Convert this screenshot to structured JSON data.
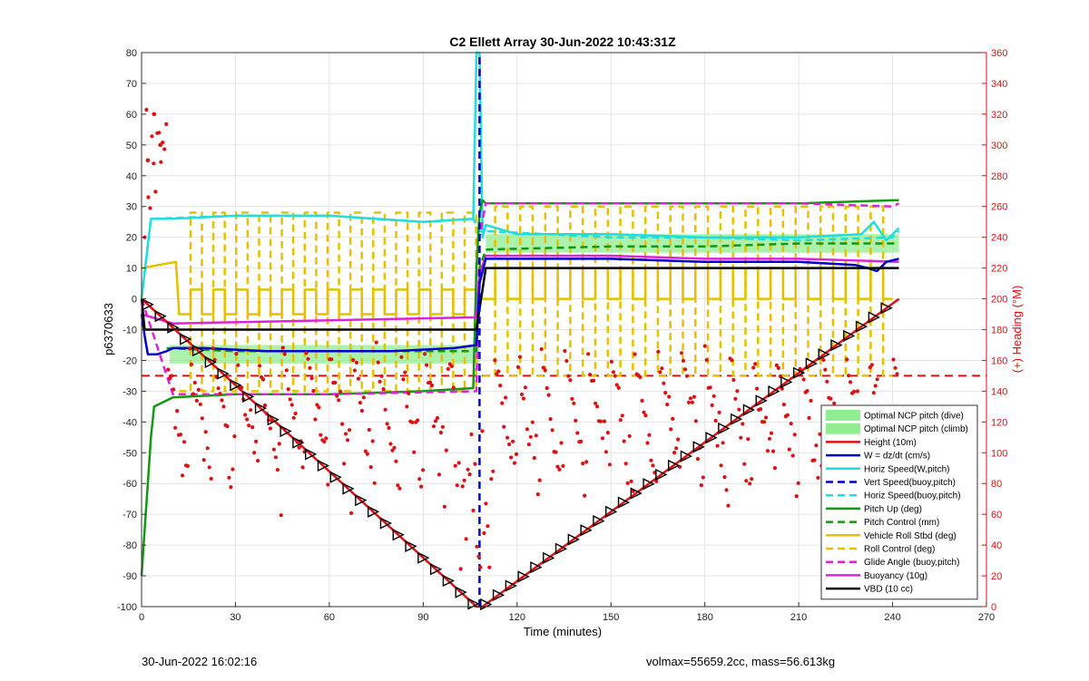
{
  "chart_data": {
    "title": "C2 Ellett Array 30-Jun-2022 10:43:31Z",
    "xlabel": "Time (minutes)",
    "ylabel": "p6370633",
    "y2label": "(+) Heading (°M)",
    "xlim": [
      0,
      270
    ],
    "ylim": [
      -100,
      80
    ],
    "y2lim": [
      0,
      360
    ],
    "xticks": [
      0,
      30,
      60,
      90,
      120,
      150,
      180,
      210,
      240,
      270
    ],
    "yticks": [
      -100,
      -90,
      -80,
      -70,
      -60,
      -50,
      -40,
      -30,
      -20,
      -10,
      0,
      10,
      20,
      30,
      40,
      50,
      60,
      70,
      80
    ],
    "y2ticks": [
      0,
      20,
      40,
      60,
      80,
      100,
      120,
      140,
      160,
      180,
      200,
      220,
      240,
      260,
      280,
      300,
      320,
      340,
      360
    ],
    "grid": true,
    "legend_position": "bottom-right",
    "series": [
      {
        "name": "Optimal NCP pitch (dive)",
        "style": "band",
        "color": "#90ee90",
        "x": [
          9,
          108
        ],
        "lower": [
          -21,
          -21
        ],
        "upper": [
          -15,
          -15
        ]
      },
      {
        "name": "Optimal NCP pitch (climb)",
        "style": "band",
        "color": "#90ee90",
        "x": [
          110,
          242
        ],
        "lower": [
          15,
          15
        ],
        "upper": [
          21,
          21
        ]
      },
      {
        "name": "Height (10m)",
        "style": "line",
        "color": "#dd1111",
        "x": [
          0,
          107,
          109,
          242
        ],
        "y": [
          0,
          -100,
          -100,
          0
        ]
      },
      {
        "name": "W = dz/dt (cm/s)",
        "style": "line",
        "color": "#0000cc",
        "x": [
          0,
          1,
          2,
          5,
          8,
          10,
          20,
          40,
          60,
          80,
          100,
          107,
          108,
          110,
          120,
          150,
          180,
          210,
          228,
          232,
          235,
          238,
          242
        ],
        "y": [
          -5,
          -12,
          -18,
          -18,
          -17,
          -16,
          -16,
          -17,
          -17,
          -17,
          -16,
          -15,
          5,
          13,
          13,
          13,
          12,
          12,
          11,
          10,
          9,
          12,
          13
        ]
      },
      {
        "name": "Horiz Speed(W,pitch)",
        "style": "line",
        "color": "#22dddd",
        "x": [
          0,
          3,
          10,
          30,
          60,
          90,
          106,
          107,
          108,
          109,
          110,
          120,
          150,
          180,
          210,
          230,
          234,
          238,
          242
        ],
        "y": [
          0,
          26,
          26,
          27,
          27,
          25,
          26,
          80,
          80,
          20,
          24,
          21,
          21,
          20,
          20,
          21,
          25,
          19,
          23
        ]
      },
      {
        "name": "Vert Speed(buoy,pitch)",
        "style": "dash",
        "color": "#0000cc",
        "x": [
          108,
          108
        ],
        "y": [
          -100,
          80
        ]
      },
      {
        "name": "Horiz Speed(buoy,pitch)",
        "style": "dash",
        "color": "#22dddd",
        "x": [
          0,
          3,
          30,
          60,
          90,
          106,
          108,
          110,
          150,
          180,
          210,
          240,
          242
        ],
        "y": [
          0,
          26,
          27,
          27,
          25,
          26,
          22,
          22,
          20,
          20,
          19,
          20,
          22
        ]
      },
      {
        "name": "Pitch Up (deg)",
        "style": "line",
        "color": "#119911",
        "x": [
          0,
          1,
          2,
          3,
          4,
          6,
          10,
          30,
          60,
          90,
          106,
          107,
          108,
          109,
          110,
          150,
          180,
          210,
          240,
          242
        ],
        "y": [
          -90,
          -75,
          -60,
          -45,
          -35,
          -34,
          -32,
          -31,
          -31,
          -30,
          -29,
          10,
          28,
          32,
          31,
          31,
          31,
          31,
          32,
          32
        ]
      },
      {
        "name": "Pitch Control (mm)",
        "style": "dash",
        "color": "#119911",
        "x": [
          8,
          30,
          60,
          90,
          107,
          108,
          110,
          150,
          180,
          210,
          242
        ],
        "y": [
          -16,
          -17,
          -17,
          -17,
          -17,
          10,
          16,
          17,
          17,
          18,
          18
        ]
      },
      {
        "name": "Vehicle Roll Stbd (deg)",
        "style": "square",
        "color": "#e6c000",
        "x": [
          0,
          11
        ],
        "y": [
          10,
          12
        ],
        "x0": 12,
        "x1": 107,
        "period": 7.3,
        "lo": -5,
        "hi": 3,
        "x0b": 109,
        "x1b": 240,
        "periodb": 8,
        "lob": 0,
        "hib": 10
      },
      {
        "name": "Roll Control (deg)",
        "style": "square-dash",
        "color": "#e6c000",
        "x0": 12,
        "x1": 107,
        "period": 7.3,
        "lo": -30,
        "hi": 28,
        "x0b": 109,
        "x1b": 240,
        "periodb": 8,
        "lob": -25,
        "hib": 30
      },
      {
        "name": "Glide Angle (buoy,pitch)",
        "style": "dash",
        "color": "#dd22dd",
        "x": [
          0,
          10,
          60,
          107,
          108,
          110,
          150,
          210,
          240,
          242
        ],
        "y": [
          0,
          -31,
          -31,
          -30,
          20,
          31,
          31,
          31,
          30,
          31
        ]
      },
      {
        "name": "Buoyancy (10g)",
        "style": "line",
        "color": "#dd22dd",
        "x": [
          0,
          10,
          60,
          107,
          108,
          110,
          150,
          180,
          210,
          242
        ],
        "y": [
          -5,
          -8,
          -7,
          -6,
          8,
          14,
          14,
          13,
          13,
          12
        ]
      },
      {
        "name": "VBD (10 cc)",
        "style": "line",
        "color": "#000000",
        "x": [
          0,
          1,
          10,
          30,
          60,
          90,
          107,
          110,
          150,
          180,
          210,
          240,
          242
        ],
        "y": [
          0,
          -10,
          -10,
          -10,
          -10,
          -10,
          -10,
          10,
          10,
          10,
          10,
          10,
          10
        ]
      }
    ],
    "heading_target": {
      "name": "",
      "color": "#dd1111",
      "y2": 150
    },
    "heading_samples": {
      "color": "#dd1111",
      "x_start": 1,
      "x_end": 242,
      "count": 420,
      "early_peak": [
        {
          "x": 2,
          "y2": 290
        },
        {
          "x": 4,
          "y2": 320
        },
        {
          "x": 6,
          "y2": 300
        }
      ]
    },
    "markers": {
      "color": "#000000",
      "note": "triangles along Height"
    }
  },
  "footer": {
    "timestamp": "30-Jun-2022 16:02:16",
    "stats": "volmax=55659.2cc, mass=56.613kg"
  }
}
